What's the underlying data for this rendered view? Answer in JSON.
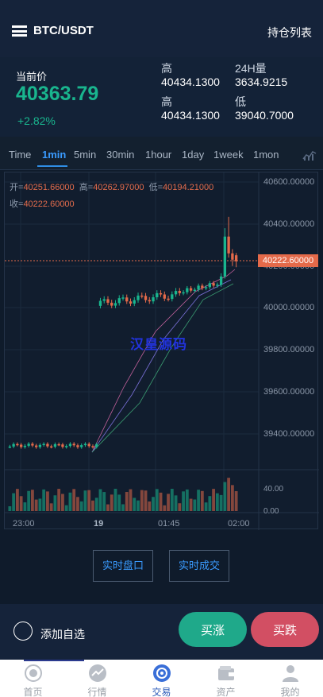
{
  "header": {
    "pair": "BTC/USDT",
    "positions": "持仓列表"
  },
  "ticker": {
    "label": "当前价",
    "price": "40363.79",
    "change": "+2.82%",
    "stats": [
      {
        "k": "高",
        "v": "40434.1300"
      },
      {
        "k": "24H量",
        "v": "3634.9215"
      },
      {
        "k": "高",
        "v": "40434.1300"
      },
      {
        "k": "低",
        "v": "39040.7000"
      }
    ]
  },
  "tabs": [
    "Time",
    "1min",
    "5min",
    "30min",
    "1hour",
    "1day",
    "1week",
    "1mon"
  ],
  "active_tab": "1min",
  "ohlc": {
    "open_label": "开=",
    "open": "40251.66000",
    "high_label": "高=",
    "high": "40262.97000",
    "low_label": "低=",
    "low": "40194.21000",
    "close_label": "收=",
    "close": "40222.60000"
  },
  "watermark": "汉皇源码",
  "colors": {
    "up": "#19b58e",
    "down": "#e46a4a",
    "accent": "#3a9bff"
  },
  "chart_data": {
    "type": "candlestick",
    "y_ticks": [
      "40600.00000",
      "40400.00000",
      "40200.00000",
      "40000.00000",
      "39800.00000",
      "39600.00000",
      "39400.00000"
    ],
    "volume_ticks": [
      "40.00",
      "0.00"
    ],
    "x_ticks": [
      "23:00",
      "19",
      "01:45",
      "02:00"
    ],
    "last_price": "40222.60000",
    "ylim": [
      39300,
      40640
    ]
  },
  "actions": {
    "realtime_book": "实时盘口",
    "realtime_trades": "实时成交"
  },
  "trade": {
    "favorite": "添加自选",
    "buy": "买涨",
    "sell": "买跌"
  },
  "nav": [
    {
      "label": "首页",
      "icon": "home-icon"
    },
    {
      "label": "行情",
      "icon": "market-icon"
    },
    {
      "label": "交易",
      "icon": "trade-icon"
    },
    {
      "label": "资产",
      "icon": "wallet-icon"
    },
    {
      "label": "我的",
      "icon": "user-icon"
    }
  ],
  "active_nav": 2
}
